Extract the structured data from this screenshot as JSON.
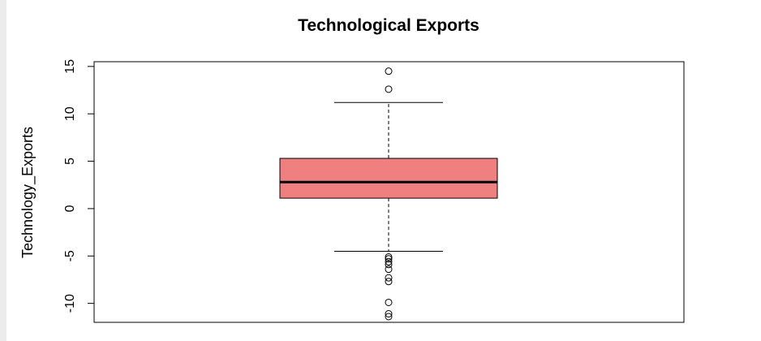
{
  "chart_data": {
    "type": "box",
    "title": "Technological Exports",
    "xlabel": "",
    "ylabel": "Technology_Exports",
    "ylim": [
      -12,
      15.5
    ],
    "y_ticks": [
      -10,
      -5,
      0,
      5,
      10,
      15
    ],
    "y_tick_labels": [
      "-10",
      "-5",
      "0",
      "5",
      "10",
      "15"
    ],
    "grid": false,
    "box": {
      "whisker_low": -4.5,
      "q1": 1.1,
      "median": 2.8,
      "q3": 5.3,
      "whisker_high": 11.2,
      "fill_color": "#f08080"
    },
    "outliers": [
      14.5,
      12.6,
      -5.1,
      -5.3,
      -5.6,
      -5.9,
      -6.4,
      -7.3,
      -7.7,
      -9.9,
      -11.1,
      -11.4
    ]
  }
}
